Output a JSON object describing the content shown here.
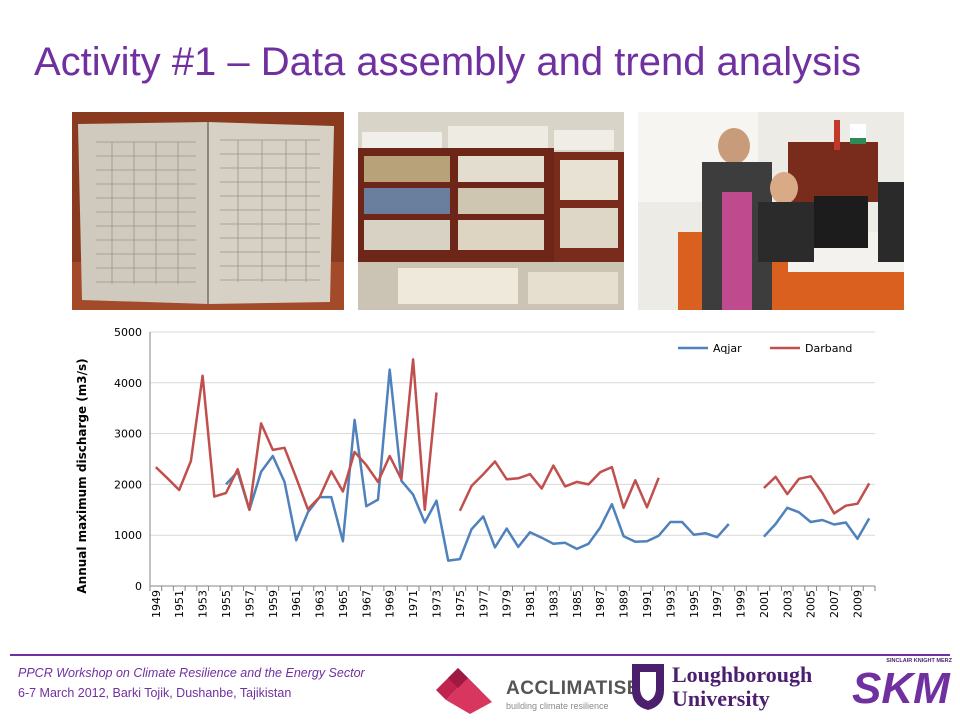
{
  "slide": {
    "title": "Activity #1 – Data assembly and trend analysis"
  },
  "photos": [
    {
      "subject": "open ledger book of hydrological records"
    },
    {
      "subject": "office shelves stacked with archived record books"
    },
    {
      "subject": "two women working at a computer in an office"
    }
  ],
  "chart_data": {
    "type": "line",
    "title": "",
    "xlabel": "",
    "ylabel": "Annual maximum discharge (m3/s)",
    "ylim": [
      0,
      5000
    ],
    "yticks": [
      0,
      1000,
      2000,
      3000,
      4000,
      5000
    ],
    "xlim": [
      1949,
      2010
    ],
    "xticks": [
      "1949",
      "1951",
      "1953",
      "1955",
      "1957",
      "1959",
      "1961",
      "1963",
      "1965",
      "1967",
      "1969",
      "1971",
      "1973",
      "1975",
      "1977",
      "1979",
      "1981",
      "1983",
      "1985",
      "1987",
      "1989",
      "1991",
      "1993",
      "1995",
      "1997",
      "1999",
      "2001",
      "2003",
      "2005",
      "2007",
      "2009"
    ],
    "grid": "horizontal",
    "legend_position": "top-right",
    "series": [
      {
        "name": "Aqjar",
        "color": "#4f81bd",
        "x": [
          1955,
          1956,
          1957,
          1958,
          1959,
          1960,
          1961,
          1962,
          1963,
          1964,
          1965,
          1966,
          1967,
          1968,
          1969,
          1970,
          1971,
          1972,
          1973,
          1974,
          1975,
          1976,
          1977,
          1978,
          1979,
          1980,
          1981,
          1982,
          1983,
          1984,
          1985,
          1986,
          1987,
          1988,
          1989,
          1990,
          1991,
          1992,
          1993,
          1994,
          1995,
          1996,
          1997,
          1998,
          2001,
          2002,
          2003,
          2004,
          2005,
          2006,
          2007,
          2008,
          2009,
          2010
        ],
        "y": [
          2000,
          2250,
          1500,
          2250,
          2560,
          2050,
          900,
          1450,
          1750,
          1750,
          880,
          3270,
          1570,
          1700,
          4260,
          2070,
          1800,
          1250,
          1680,
          500,
          530,
          1120,
          1370,
          760,
          1130,
          770,
          1060,
          950,
          830,
          850,
          730,
          830,
          1150,
          1610,
          980,
          870,
          880,
          990,
          1260,
          1260,
          1010,
          1040,
          960,
          1220,
          970,
          1220,
          1540,
          1450,
          1260,
          1300,
          1210,
          1250,
          930,
          1330
        ]
      },
      {
        "name": "Darband",
        "color": "#c0504d",
        "x": [
          1949,
          1950,
          1951,
          1952,
          1953,
          1954,
          1955,
          1956,
          1957,
          1958,
          1959,
          1960,
          1961,
          1962,
          1963,
          1964,
          1965,
          1966,
          1967,
          1968,
          1969,
          1970,
          1971,
          1972,
          1973,
          1975,
          1976,
          1977,
          1978,
          1979,
          1980,
          1981,
          1982,
          1983,
          1984,
          1985,
          1986,
          1987,
          1988,
          1989,
          1990,
          1991,
          1992,
          2001,
          2002,
          2003,
          2004,
          2005,
          2006,
          2007,
          2008,
          2009,
          2010
        ],
        "y": [
          2340,
          2120,
          1890,
          2460,
          4140,
          1760,
          1830,
          2300,
          1500,
          3200,
          2680,
          2720,
          2130,
          1510,
          1750,
          2260,
          1860,
          2640,
          2380,
          2050,
          2560,
          2100,
          4460,
          1500,
          3810,
          1480,
          1970,
          2200,
          2450,
          2100,
          2120,
          2200,
          1920,
          2370,
          1960,
          2050,
          2000,
          2240,
          2340,
          1540,
          2080,
          1550,
          2130,
          1930,
          2150,
          1810,
          2110,
          2160,
          1830,
          1430,
          1580,
          1620,
          2020
        ]
      }
    ]
  },
  "footer": {
    "line1": "PPCR Workshop on Climate Resilience and the Energy Sector",
    "line2": "6-7 March 2012, Barki Tojik, Dushanbe, Tajikistan"
  },
  "logos": {
    "acclimatise_name": "ACCLIMATISE",
    "acclimatise_tagline": "building climate resilience",
    "loughborough_line1": "Loughborough",
    "loughborough_line2": "University",
    "skm_tagline": "SINCLAIR KNIGHT MERZ",
    "skm_name": "SKM"
  },
  "colors": {
    "accent": "#7030a0",
    "aqjar": "#4f81bd",
    "darband": "#c0504d"
  }
}
